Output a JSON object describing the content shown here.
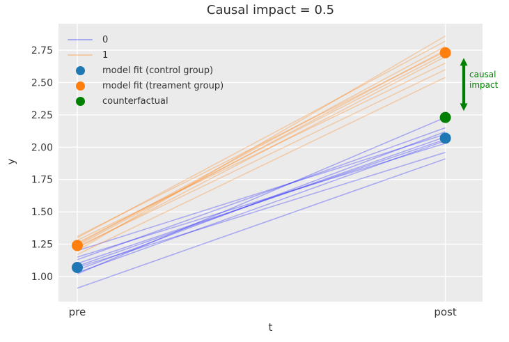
{
  "figure": {
    "title": "Causal impact = 0.5",
    "xlabel": "t",
    "ylabel": "y"
  },
  "annotation": {
    "line1": "causal",
    "line2": "impact"
  },
  "colors": {
    "plot_bg": "#ebebeb",
    "grid": "#ffffff",
    "control_line": "rgba(0,0,255,0.28)",
    "treatment_line": "rgba(255,127,14,0.30)",
    "control_marker": "#1f77b4",
    "treatment_marker": "#ff7f0e",
    "counterfactual_marker": "#008000",
    "annotation": "#008000",
    "tick_text": "#3a3a3a"
  },
  "chart_data": {
    "type": "line",
    "title": "Causal impact = 0.5",
    "xlabel": "t",
    "ylabel": "y",
    "causal_impact_value": 0.5,
    "grid": true,
    "legend_position": "upper left",
    "x_categories": [
      "pre",
      "post"
    ],
    "x_positions": [
      0,
      1
    ],
    "xlim": [
      -0.051,
      1.101
    ],
    "ylim": [
      0.806,
      2.955
    ],
    "yticks": [
      1.0,
      1.25,
      1.5,
      1.75,
      2.0,
      2.25,
      2.5,
      2.75
    ],
    "ytick_labels": [
      "1.00",
      "1.25",
      "1.50",
      "1.75",
      "2.00",
      "2.25",
      "2.50",
      "2.75"
    ],
    "legend": [
      {
        "label": "0",
        "type": "line",
        "color_key": "control_line"
      },
      {
        "label": "1",
        "type": "line",
        "color_key": "treatment_line"
      },
      {
        "label": "model fit (control group)",
        "type": "marker",
        "color_key": "control_marker"
      },
      {
        "label": "model fit (treament group)",
        "type": "marker",
        "color_key": "treatment_marker"
      },
      {
        "label": "counterfactual",
        "type": "marker",
        "color_key": "counterfactual_marker"
      }
    ],
    "series": [
      {
        "name": "0",
        "kind": "individual-lines",
        "color_key": "control_line",
        "lines_pre_post": [
          [
            0.91,
            1.91
          ],
          [
            1.02,
            2.23
          ],
          [
            1.03,
            2.05
          ],
          [
            1.05,
            2.12
          ],
          [
            1.07,
            1.96
          ],
          [
            1.08,
            2.08
          ],
          [
            1.1,
            2.06
          ],
          [
            1.13,
            2.15
          ],
          [
            1.15,
            2.03
          ],
          [
            1.2,
            2.1
          ]
        ]
      },
      {
        "name": "1",
        "kind": "individual-lines",
        "color_key": "treatment_line",
        "lines_pre_post": [
          [
            1.17,
            2.54
          ],
          [
            1.2,
            2.86
          ],
          [
            1.22,
            2.7
          ],
          [
            1.23,
            2.6
          ],
          [
            1.24,
            2.75
          ],
          [
            1.25,
            2.78
          ],
          [
            1.26,
            2.72
          ],
          [
            1.28,
            2.65
          ],
          [
            1.3,
            2.82
          ],
          [
            1.31,
            2.74
          ]
        ]
      }
    ],
    "markers": [
      {
        "name": "model fit (control group)",
        "color_key": "control_marker",
        "points": [
          [
            0,
            1.07
          ],
          [
            1,
            2.07
          ]
        ]
      },
      {
        "name": "model fit (treament group)",
        "color_key": "treatment_marker",
        "points": [
          [
            0,
            1.24
          ],
          [
            1,
            2.73
          ]
        ]
      },
      {
        "name": "counterfactual",
        "color_key": "counterfactual_marker",
        "points": [
          [
            1,
            2.23
          ]
        ]
      }
    ],
    "annotation": {
      "text_lines": [
        "causal",
        "impact"
      ],
      "color_key": "annotation",
      "arrow_x": 1.05,
      "arrow_y_bottom": 2.28,
      "arrow_y_top": 2.69
    }
  }
}
